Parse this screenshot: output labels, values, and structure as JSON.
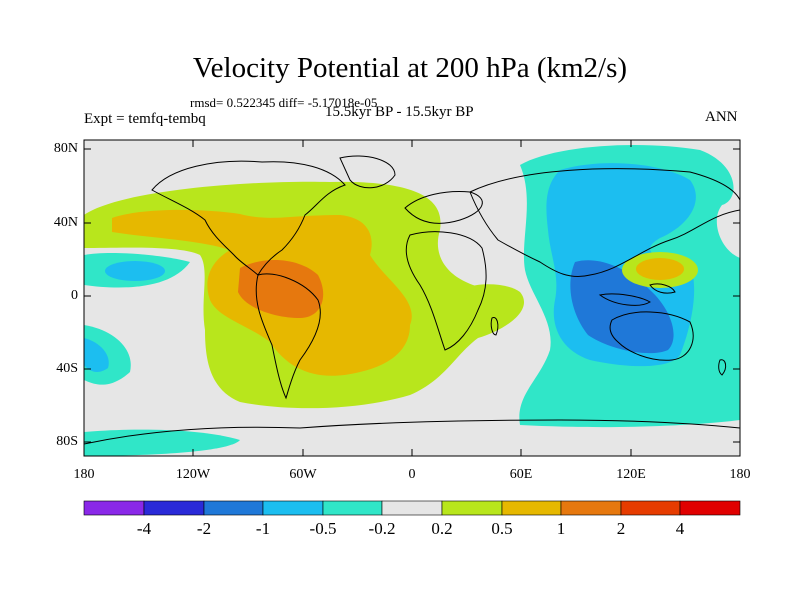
{
  "title": "Velocity Potential at 200 hPa (km2/s)",
  "stats": "rmsd= 0.522345  diff= -5.17018e-05",
  "experiment": "Expt = temfq-tembq",
  "period": "15.5kyr BP - 15.5kyr BP",
  "season": "ANN",
  "lat_labels": [
    "80N",
    "40N",
    "0",
    "40S",
    "80S"
  ],
  "lon_labels": [
    "180",
    "120W",
    "60W",
    "0",
    "60E",
    "120E",
    "180"
  ],
  "colorbar": {
    "labels": [
      "-4",
      "-2",
      "-1",
      "-0.5",
      "-0.2",
      "0.2",
      "0.5",
      "1",
      "2",
      "4"
    ],
    "colors": [
      "#8a28e8",
      "#2a2ad8",
      "#1f78d8",
      "#1cbef0",
      "#30e6c8",
      "#e6e6e6",
      "#b8e61c",
      "#e6b800",
      "#e6780e",
      "#e63c00",
      "#e00000"
    ]
  }
}
